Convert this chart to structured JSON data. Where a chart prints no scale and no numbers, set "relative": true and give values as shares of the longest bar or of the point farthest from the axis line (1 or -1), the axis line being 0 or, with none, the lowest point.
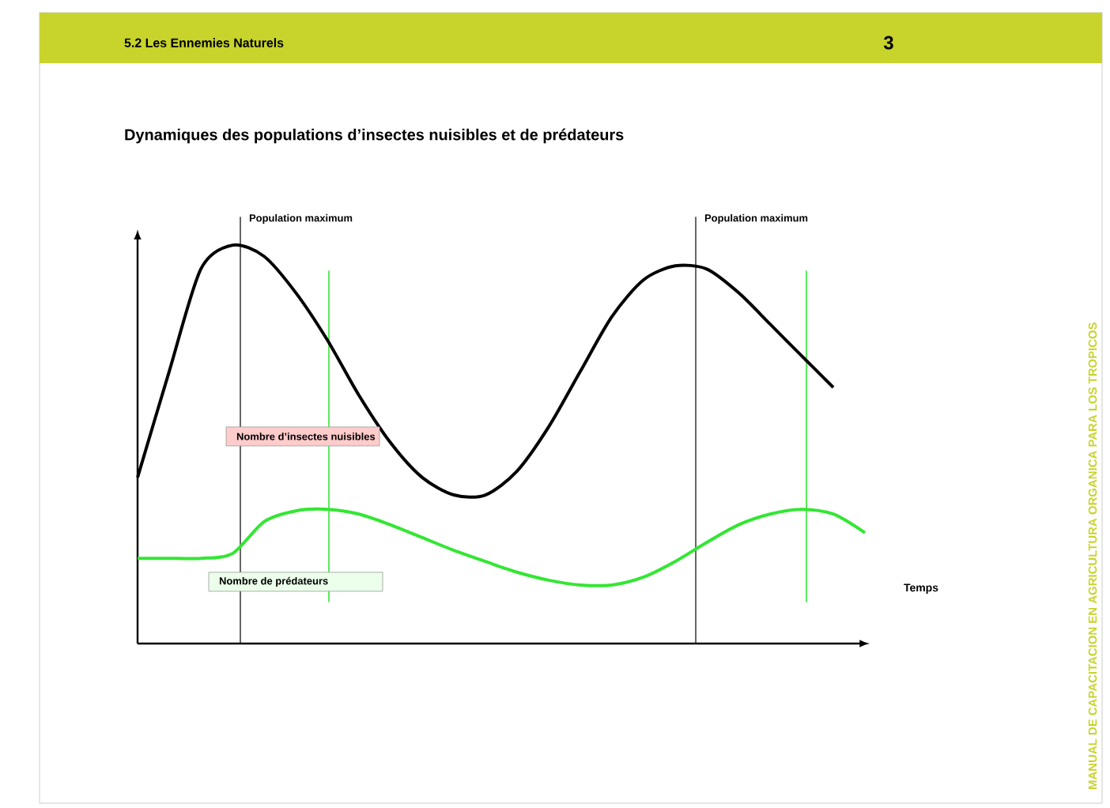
{
  "chart_data": {
    "type": "line",
    "title": "Dynamiques des populations d’insectes nuisibles et de prédateurs",
    "xlabel": "Temps",
    "relative": true,
    "categories": [
      null,
      null,
      null,
      null,
      null,
      null,
      null,
      null,
      null,
      null,
      null,
      null,
      null,
      null,
      null,
      null,
      null,
      null,
      null,
      null,
      null,
      null,
      null,
      null
    ],
    "series": [
      {
        "name": "Nombre d’insectes nuisibles",
        "color": "#000000",
        "values": [
          0.417,
          0.683,
          0.94,
          1,
          0.972,
          0.881,
          0.762,
          0.623,
          0.504,
          0.417,
          0.373,
          0.373,
          0.433,
          0.544,
          0.683,
          0.821,
          0.913,
          0.948,
          0.94,
          0.881,
          0.802,
          0.722,
          0.643,
          null
        ]
      },
      {
        "name": "Nombre de prédateurs",
        "color": "#33e633",
        "values": [
          0.214,
          0.214,
          0.214,
          0.226,
          0.306,
          0.333,
          0.337,
          0.325,
          0.298,
          0.266,
          0.234,
          0.206,
          0.179,
          0.159,
          0.147,
          0.147,
          0.167,
          0.206,
          0.254,
          0.298,
          0.325,
          0.337,
          0.325,
          0.278
        ]
      }
    ],
    "annotations": [
      "5.2 Les Ennemies Naturels",
      "3",
      "MANUAL DE CAPACITACION EN AGRICULTURA ORGANICA PARA LOS TROPICOS",
      "Population maximum",
      "Population maximum"
    ]
  }
}
